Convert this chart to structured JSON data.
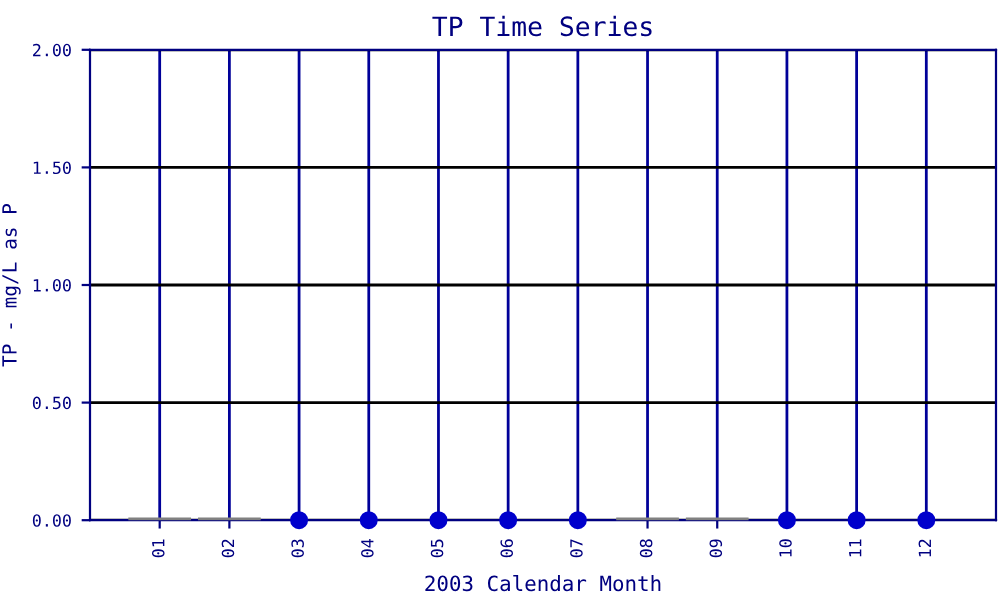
{
  "chart_data": {
    "type": "scatter",
    "title": "TP Time Series",
    "xlabel": "2003 Calendar Month",
    "ylabel": "TP - mg/L as P",
    "categories": [
      "01",
      "02",
      "03",
      "04",
      "05",
      "06",
      "07",
      "08",
      "09",
      "10",
      "11",
      "12"
    ],
    "series": [
      {
        "type": "bar",
        "color": "#808080",
        "values": [
          0,
          0,
          null,
          null,
          null,
          null,
          null,
          0,
          0,
          null,
          null,
          null
        ]
      },
      {
        "color": "#0000cc",
        "values": [
          null,
          null,
          0,
          0,
          0,
          0,
          0,
          null,
          null,
          0,
          0,
          0
        ]
      }
    ],
    "ylim": [
      0,
      2
    ],
    "yticks": [
      {
        "value": 0,
        "label": "0.00"
      },
      {
        "value": 0.5,
        "label": "0.50"
      },
      {
        "value": 1,
        "label": "1.00"
      },
      {
        "value": 1.5,
        "label": "1.50"
      },
      {
        "value": 2,
        "label": "2.00"
      }
    ],
    "grid": true,
    "marker": "circle"
  }
}
